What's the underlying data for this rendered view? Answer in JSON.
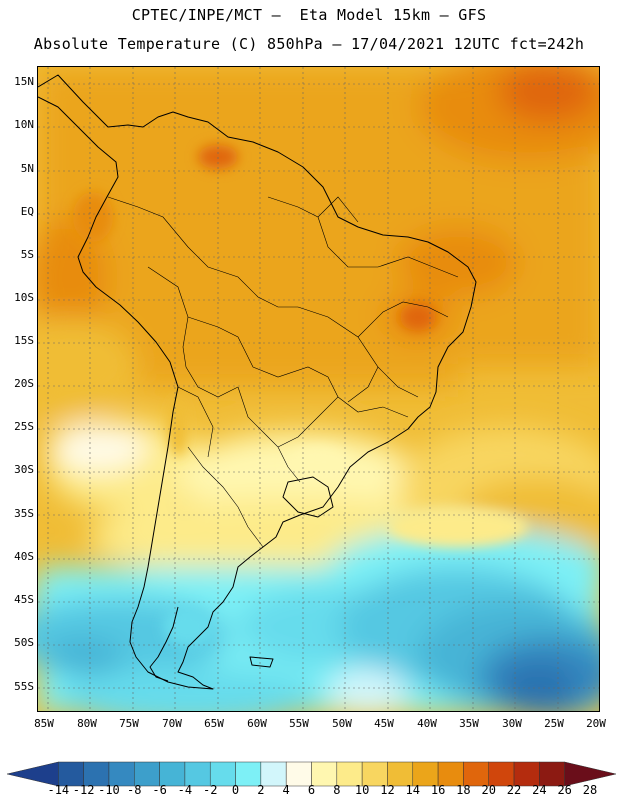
{
  "title_line1": "CPTEC/INPE/MCT —  Eta Model 15km — GFS",
  "title_line2": "Absolute Temperature (C) 850hPa — 17/04/2021 12UTC fct=242h",
  "lat_labels": [
    "15N",
    "10N",
    "5N",
    "EQ",
    "5S",
    "10S",
    "15S",
    "20S",
    "25S",
    "30S",
    "35S",
    "40S",
    "45S",
    "50S",
    "55S"
  ],
  "lon_labels": [
    "85W",
    "80W",
    "75W",
    "70W",
    "65W",
    "60W",
    "55W",
    "50W",
    "45W",
    "40W",
    "35W",
    "30W",
    "25W",
    "20W"
  ],
  "colorbar": {
    "levels": [
      "-14",
      "-12",
      "-10",
      "-8",
      "-6",
      "-4",
      "-2",
      "0",
      "2",
      "4",
      "6",
      "8",
      "10",
      "12",
      "14",
      "16",
      "18",
      "20",
      "22",
      "24",
      "26",
      "28"
    ],
    "colors": [
      "#1d3f8c",
      "#245a9e",
      "#2c72b0",
      "#3589c0",
      "#3d9fcb",
      "#46b4d6",
      "#55c8e2",
      "#66dcec",
      "#7df0f6",
      "#d2f6fb",
      "#fffbe8",
      "#fff7b0",
      "#fdeb8a",
      "#f8d660",
      "#f0bd36",
      "#eba51a",
      "#e88c0e",
      "#e0660c",
      "#d0460c",
      "#b42c0e",
      "#8c1a12",
      "#6a0e1a"
    ]
  }
}
